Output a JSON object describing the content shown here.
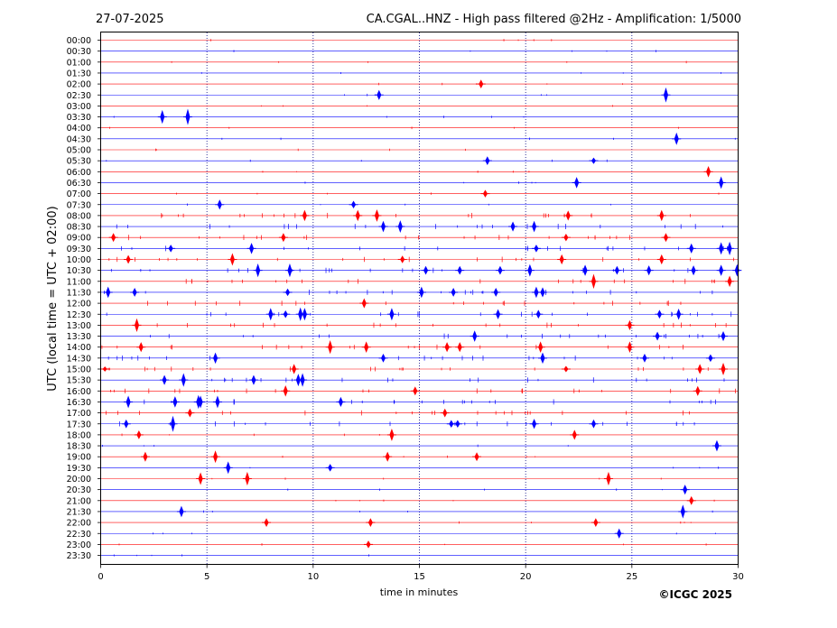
{
  "header": {
    "date": "27-07-2025",
    "title": "CA.CGAL..HNZ - High pass filtered @2Hz - Amplification: 1/5000"
  },
  "copyright": "©ICGC 2025",
  "colors": {
    "red": "#ff0000",
    "blue": "#0000ff",
    "grid": "#000080"
  },
  "chart_data": {
    "type": "line",
    "title": "CA.CGAL..HNZ - High pass filtered @2Hz - Amplification: 1/5000",
    "xlabel": "time in minutes",
    "ylabel": "UTC (local time = UTC + 02:00)",
    "xlim": [
      0,
      30
    ],
    "xticks": [
      "0",
      "5",
      "10",
      "15",
      "20",
      "25",
      "30"
    ],
    "vertical_gridlines_minutes": [
      5,
      10,
      15,
      20,
      25
    ],
    "rows": [
      "00:00",
      "00:30",
      "01:00",
      "01:30",
      "02:00",
      "02:30",
      "03:00",
      "03:30",
      "04:00",
      "04:30",
      "05:00",
      "05:30",
      "06:00",
      "06:30",
      "07:00",
      "07:30",
      "08:00",
      "08:30",
      "09:00",
      "09:30",
      "10:00",
      "10:30",
      "11:00",
      "11:30",
      "12:00",
      "12:30",
      "13:00",
      "13:30",
      "14:00",
      "14:30",
      "15:00",
      "15:30",
      "16:00",
      "16:30",
      "17:00",
      "17:30",
      "18:00",
      "18:30",
      "19:00",
      "19:30",
      "20:00",
      "20:30",
      "21:00",
      "21:30",
      "22:00",
      "22:30",
      "23:00",
      "23:30"
    ],
    "row_colors": "alternating red (even rows) / blue (odd rows)",
    "events": [
      {
        "row": "02:00",
        "minute": 17.9,
        "amp": 0.35
      },
      {
        "row": "02:30",
        "minute": 13.1,
        "amp": 0.4
      },
      {
        "row": "02:30",
        "minute": 26.6,
        "amp": 0.6
      },
      {
        "row": "03:30",
        "minute": 2.9,
        "amp": 0.55
      },
      {
        "row": "03:30",
        "minute": 4.1,
        "amp": 0.65
      },
      {
        "row": "04:30",
        "minute": 27.1,
        "amp": 0.5
      },
      {
        "row": "05:30",
        "minute": 18.2,
        "amp": 0.35
      },
      {
        "row": "05:30",
        "minute": 23.2,
        "amp": 0.25
      },
      {
        "row": "06:00",
        "minute": 28.6,
        "amp": 0.45
      },
      {
        "row": "06:30",
        "minute": 22.4,
        "amp": 0.45
      },
      {
        "row": "06:30",
        "minute": 29.2,
        "amp": 0.5
      },
      {
        "row": "07:00",
        "minute": 18.1,
        "amp": 0.3
      },
      {
        "row": "07:30",
        "minute": 5.6,
        "amp": 0.4
      },
      {
        "row": "07:30",
        "minute": 11.9,
        "amp": 0.3
      },
      {
        "row": "08:00",
        "minute": 9.6,
        "amp": 0.45
      },
      {
        "row": "08:00",
        "minute": 12.1,
        "amp": 0.45
      },
      {
        "row": "08:00",
        "minute": 13.0,
        "amp": 0.5
      },
      {
        "row": "08:00",
        "minute": 22.0,
        "amp": 0.4
      },
      {
        "row": "08:00",
        "minute": 26.4,
        "amp": 0.45
      },
      {
        "row": "08:30",
        "minute": 13.3,
        "amp": 0.45
      },
      {
        "row": "08:30",
        "minute": 14.1,
        "amp": 0.5
      },
      {
        "row": "08:30",
        "minute": 19.4,
        "amp": 0.4
      },
      {
        "row": "08:30",
        "minute": 20.4,
        "amp": 0.45
      },
      {
        "row": "09:00",
        "minute": 0.6,
        "amp": 0.35
      },
      {
        "row": "09:00",
        "minute": 8.6,
        "amp": 0.35
      },
      {
        "row": "09:00",
        "minute": 21.9,
        "amp": 0.3
      },
      {
        "row": "09:00",
        "minute": 26.6,
        "amp": 0.35
      },
      {
        "row": "09:30",
        "minute": 3.3,
        "amp": 0.3
      },
      {
        "row": "09:30",
        "minute": 7.1,
        "amp": 0.45
      },
      {
        "row": "09:30",
        "minute": 20.5,
        "amp": 0.3
      },
      {
        "row": "09:30",
        "minute": 27.8,
        "amp": 0.4
      },
      {
        "row": "09:30",
        "minute": 29.2,
        "amp": 0.5
      },
      {
        "row": "09:30",
        "minute": 29.6,
        "amp": 0.55
      },
      {
        "row": "10:00",
        "minute": 1.3,
        "amp": 0.35
      },
      {
        "row": "10:00",
        "minute": 6.2,
        "amp": 0.5
      },
      {
        "row": "10:00",
        "minute": 14.2,
        "amp": 0.3
      },
      {
        "row": "10:00",
        "minute": 21.7,
        "amp": 0.4
      },
      {
        "row": "10:00",
        "minute": 26.4,
        "amp": 0.4
      },
      {
        "row": "10:30",
        "minute": 7.4,
        "amp": 0.55
      },
      {
        "row": "10:30",
        "minute": 8.9,
        "amp": 0.55
      },
      {
        "row": "10:30",
        "minute": 15.3,
        "amp": 0.35
      },
      {
        "row": "10:30",
        "minute": 16.9,
        "amp": 0.35
      },
      {
        "row": "10:30",
        "minute": 18.8,
        "amp": 0.35
      },
      {
        "row": "10:30",
        "minute": 20.2,
        "amp": 0.5
      },
      {
        "row": "10:30",
        "minute": 22.8,
        "amp": 0.45
      },
      {
        "row": "10:30",
        "minute": 24.3,
        "amp": 0.35
      },
      {
        "row": "10:30",
        "minute": 25.8,
        "amp": 0.4
      },
      {
        "row": "10:30",
        "minute": 27.9,
        "amp": 0.4
      },
      {
        "row": "10:30",
        "minute": 29.2,
        "amp": 0.45
      },
      {
        "row": "10:30",
        "minute": 29.95,
        "amp": 0.5
      },
      {
        "row": "11:00",
        "minute": 23.2,
        "amp": 0.6
      },
      {
        "row": "11:00",
        "minute": 29.6,
        "amp": 0.45
      },
      {
        "row": "11:30",
        "minute": 0.35,
        "amp": 0.45
      },
      {
        "row": "11:30",
        "minute": 1.6,
        "amp": 0.35
      },
      {
        "row": "11:30",
        "minute": 8.8,
        "amp": 0.3
      },
      {
        "row": "11:30",
        "minute": 15.1,
        "amp": 0.45
      },
      {
        "row": "11:30",
        "minute": 16.6,
        "amp": 0.35
      },
      {
        "row": "11:30",
        "minute": 18.6,
        "amp": 0.35
      },
      {
        "row": "11:30",
        "minute": 20.5,
        "amp": 0.45
      },
      {
        "row": "11:30",
        "minute": 20.8,
        "amp": 0.4
      },
      {
        "row": "12:00",
        "minute": 12.4,
        "amp": 0.4
      },
      {
        "row": "12:30",
        "minute": 8.0,
        "amp": 0.5
      },
      {
        "row": "12:30",
        "minute": 8.7,
        "amp": 0.3
      },
      {
        "row": "12:30",
        "minute": 9.4,
        "amp": 0.55
      },
      {
        "row": "12:30",
        "minute": 9.6,
        "amp": 0.5
      },
      {
        "row": "12:30",
        "minute": 13.7,
        "amp": 0.5
      },
      {
        "row": "12:30",
        "minute": 18.7,
        "amp": 0.4
      },
      {
        "row": "12:30",
        "minute": 20.6,
        "amp": 0.35
      },
      {
        "row": "12:30",
        "minute": 26.3,
        "amp": 0.35
      },
      {
        "row": "12:30",
        "minute": 27.2,
        "amp": 0.45
      },
      {
        "row": "13:00",
        "minute": 1.7,
        "amp": 0.55
      },
      {
        "row": "13:00",
        "minute": 24.9,
        "amp": 0.4
      },
      {
        "row": "13:30",
        "minute": 17.6,
        "amp": 0.45
      },
      {
        "row": "13:30",
        "minute": 26.2,
        "amp": 0.35
      },
      {
        "row": "13:30",
        "minute": 29.3,
        "amp": 0.4
      },
      {
        "row": "14:00",
        "minute": 1.9,
        "amp": 0.4
      },
      {
        "row": "14:00",
        "minute": 10.8,
        "amp": 0.55
      },
      {
        "row": "14:00",
        "minute": 12.5,
        "amp": 0.45
      },
      {
        "row": "14:00",
        "minute": 16.3,
        "amp": 0.4
      },
      {
        "row": "14:00",
        "minute": 16.9,
        "amp": 0.4
      },
      {
        "row": "14:00",
        "minute": 20.7,
        "amp": 0.45
      },
      {
        "row": "14:00",
        "minute": 24.9,
        "amp": 0.45
      },
      {
        "row": "14:30",
        "minute": 5.4,
        "amp": 0.45
      },
      {
        "row": "14:30",
        "minute": 13.3,
        "amp": 0.35
      },
      {
        "row": "14:30",
        "minute": 20.8,
        "amp": 0.45
      },
      {
        "row": "14:30",
        "minute": 25.6,
        "amp": 0.35
      },
      {
        "row": "14:30",
        "minute": 28.7,
        "amp": 0.3
      },
      {
        "row": "15:00",
        "minute": 0.2,
        "amp": 0.2
      },
      {
        "row": "15:00",
        "minute": 9.1,
        "amp": 0.4
      },
      {
        "row": "15:00",
        "minute": 21.9,
        "amp": 0.25
      },
      {
        "row": "15:00",
        "minute": 28.2,
        "amp": 0.4
      },
      {
        "row": "15:00",
        "minute": 29.3,
        "amp": 0.5
      },
      {
        "row": "15:30",
        "minute": 3.0,
        "amp": 0.4
      },
      {
        "row": "15:30",
        "minute": 3.9,
        "amp": 0.55
      },
      {
        "row": "15:30",
        "minute": 7.2,
        "amp": 0.4
      },
      {
        "row": "15:30",
        "minute": 9.3,
        "amp": 0.5
      },
      {
        "row": "15:30",
        "minute": 9.5,
        "amp": 0.55
      },
      {
        "row": "16:00",
        "minute": 8.7,
        "amp": 0.45
      },
      {
        "row": "16:00",
        "minute": 14.8,
        "amp": 0.35
      },
      {
        "row": "16:00",
        "minute": 28.1,
        "amp": 0.4
      },
      {
        "row": "16:30",
        "minute": 1.3,
        "amp": 0.5
      },
      {
        "row": "16:30",
        "minute": 3.5,
        "amp": 0.45
      },
      {
        "row": "16:30",
        "minute": 4.6,
        "amp": 0.55
      },
      {
        "row": "16:30",
        "minute": 4.7,
        "amp": 0.5
      },
      {
        "row": "16:30",
        "minute": 5.5,
        "amp": 0.5
      },
      {
        "row": "16:30",
        "minute": 11.3,
        "amp": 0.4
      },
      {
        "row": "17:00",
        "minute": 4.2,
        "amp": 0.35
      },
      {
        "row": "17:00",
        "minute": 16.2,
        "amp": 0.35
      },
      {
        "row": "17:30",
        "minute": 1.2,
        "amp": 0.35
      },
      {
        "row": "17:30",
        "minute": 3.4,
        "amp": 0.65
      },
      {
        "row": "17:30",
        "minute": 16.5,
        "amp": 0.3
      },
      {
        "row": "17:30",
        "minute": 16.8,
        "amp": 0.3
      },
      {
        "row": "17:30",
        "minute": 20.4,
        "amp": 0.4
      },
      {
        "row": "17:30",
        "minute": 23.2,
        "amp": 0.35
      },
      {
        "row": "18:00",
        "minute": 1.8,
        "amp": 0.35
      },
      {
        "row": "18:00",
        "minute": 13.7,
        "amp": 0.5
      },
      {
        "row": "18:00",
        "minute": 22.3,
        "amp": 0.4
      },
      {
        "row": "18:30",
        "minute": 29.0,
        "amp": 0.45
      },
      {
        "row": "19:00",
        "minute": 2.1,
        "amp": 0.4
      },
      {
        "row": "19:00",
        "minute": 5.4,
        "amp": 0.5
      },
      {
        "row": "19:00",
        "minute": 13.5,
        "amp": 0.4
      },
      {
        "row": "19:00",
        "minute": 17.7,
        "amp": 0.35
      },
      {
        "row": "19:30",
        "minute": 6.0,
        "amp": 0.5
      },
      {
        "row": "19:30",
        "minute": 10.8,
        "amp": 0.3
      },
      {
        "row": "20:00",
        "minute": 4.7,
        "amp": 0.5
      },
      {
        "row": "20:00",
        "minute": 6.9,
        "amp": 0.55
      },
      {
        "row": "20:00",
        "minute": 23.9,
        "amp": 0.55
      },
      {
        "row": "20:30",
        "minute": 27.5,
        "amp": 0.4
      },
      {
        "row": "21:00",
        "minute": 27.8,
        "amp": 0.35
      },
      {
        "row": "21:30",
        "minute": 3.8,
        "amp": 0.45
      },
      {
        "row": "21:30",
        "minute": 27.4,
        "amp": 0.55
      },
      {
        "row": "22:00",
        "minute": 7.8,
        "amp": 0.35
      },
      {
        "row": "22:00",
        "minute": 12.7,
        "amp": 0.35
      },
      {
        "row": "22:00",
        "minute": 23.3,
        "amp": 0.35
      },
      {
        "row": "22:30",
        "minute": 24.4,
        "amp": 0.4
      },
      {
        "row": "23:00",
        "minute": 12.6,
        "amp": 0.3
      }
    ]
  }
}
